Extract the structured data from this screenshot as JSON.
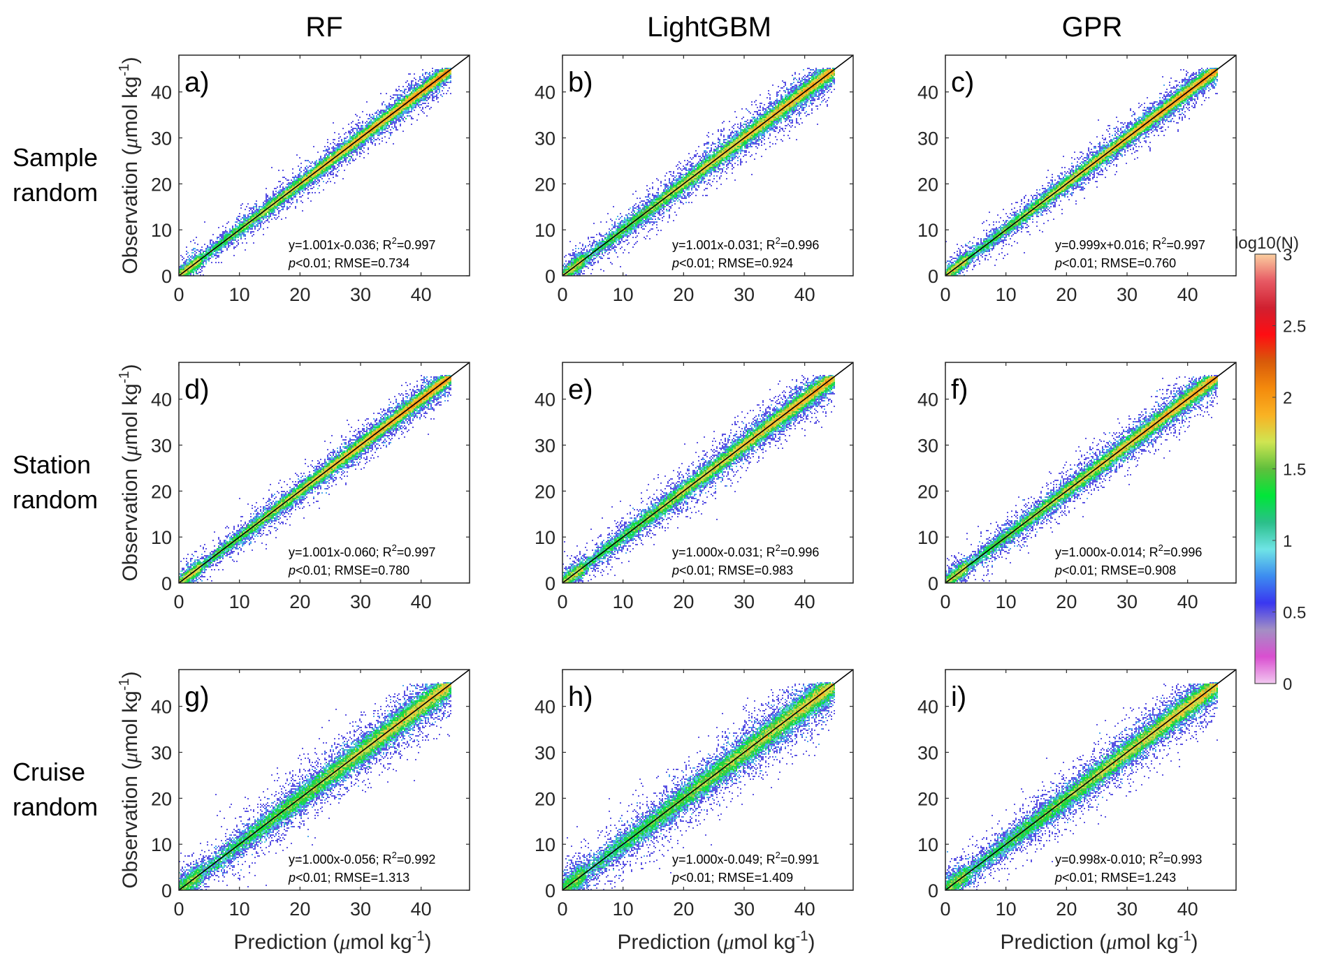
{
  "chart_data": {
    "type": "scatter",
    "subtype": "density-scatter-grid",
    "column_titles": [
      "RF",
      "LightGBM",
      "GPR"
    ],
    "row_titles": [
      [
        "Sample",
        "random"
      ],
      [
        "Station",
        "random"
      ],
      [
        "Cruise",
        "random"
      ]
    ],
    "xlabel": {
      "main": "Prediction (",
      "mu": "μ",
      "rest": "mol kg",
      "sup": "-1",
      "close": ")"
    },
    "ylabel": {
      "main": "Observation (",
      "mu": "μ",
      "rest": "mol kg",
      "sup": "-1",
      "close": ")"
    },
    "xlim": [
      0,
      48
    ],
    "ylim": [
      0,
      48
    ],
    "xticks": [
      0,
      10,
      20,
      30,
      40
    ],
    "yticks": [
      0,
      10,
      20,
      30,
      40
    ],
    "reference_line": "1:1",
    "colorbar": {
      "title": "log10(N)",
      "range": [
        0,
        3
      ],
      "ticks": [
        0,
        0.5,
        1,
        1.5,
        2,
        2.5,
        3
      ],
      "tick_labels": [
        "0",
        "0.5",
        "1",
        "1.5",
        "2",
        "2.5",
        "3"
      ],
      "colors": [
        "#f2c8f0",
        "#d94fd0",
        "#a38fc4",
        "#3a37f0",
        "#3c8cf0",
        "#6fe4e6",
        "#2bbf8a",
        "#00e639",
        "#5fbf3c",
        "#cfe552",
        "#f9b223",
        "#f48a0c",
        "#d85a0a",
        "#fe0d12",
        "#d02030",
        "#e75a64",
        "#fbcfa0"
      ]
    },
    "panels": [
      {
        "label": "a)",
        "model": "RF",
        "split": "Sample random",
        "slope": 1.001,
        "intercept": -0.036,
        "eq": "y=1.001x-0.036; R",
        "r2": "=0.997",
        "rmse": "<0.01; RMSE=0.734",
        "spread": 0.73
      },
      {
        "label": "b)",
        "model": "LightGBM",
        "split": "Sample random",
        "slope": 1.001,
        "intercept": -0.031,
        "eq": "y=1.001x-0.031; R",
        "r2": "=0.996",
        "rmse": "<0.01; RMSE=0.924",
        "spread": 0.92
      },
      {
        "label": "c)",
        "model": "GPR",
        "split": "Sample random",
        "slope": 0.999,
        "intercept": 0.016,
        "eq": "y=0.999x+0.016; R",
        "r2": "=0.997",
        "rmse": "<0.01; RMSE=0.760",
        "spread": 0.76
      },
      {
        "label": "d)",
        "model": "RF",
        "split": "Station random",
        "slope": 1.001,
        "intercept": -0.06,
        "eq": "y=1.001x-0.060; R",
        "r2": "=0.997",
        "rmse": "<0.01; RMSE=0.780",
        "spread": 0.78
      },
      {
        "label": "e)",
        "model": "LightGBM",
        "split": "Station random",
        "slope": 1.0,
        "intercept": -0.031,
        "eq": "y=1.000x-0.031; R",
        "r2": "=0.996",
        "rmse": "<0.01; RMSE=0.983",
        "spread": 0.98
      },
      {
        "label": "f)",
        "model": "GPR",
        "split": "Station random",
        "slope": 1.0,
        "intercept": -0.014,
        "eq": "y=1.000x-0.014; R",
        "r2": "=0.996",
        "rmse": "<0.01; RMSE=0.908",
        "spread": 0.91
      },
      {
        "label": "g)",
        "model": "RF",
        "split": "Cruise random",
        "slope": 1.0,
        "intercept": -0.056,
        "eq": "y=1.000x-0.056; R",
        "r2": "=0.992",
        "rmse": "<0.01; RMSE=1.313",
        "spread": 1.31
      },
      {
        "label": "h)",
        "model": "LightGBM",
        "split": "Cruise random",
        "slope": 1.0,
        "intercept": -0.049,
        "eq": "y=1.000x-0.049; R",
        "r2": "=0.991",
        "rmse": "<0.01; RMSE=1.409",
        "spread": 1.41
      },
      {
        "label": "i)",
        "model": "GPR",
        "split": "Cruise random",
        "slope": 0.998,
        "intercept": -0.01,
        "eq": "y=0.998x-0.010; R",
        "r2": "=0.993",
        "rmse": "<0.01; RMSE=1.243",
        "spread": 1.24
      }
    ],
    "data_range_max": 45,
    "grid": false,
    "legend": "colorbar right"
  },
  "text": {
    "p": "p",
    "r2_sup": "2"
  }
}
